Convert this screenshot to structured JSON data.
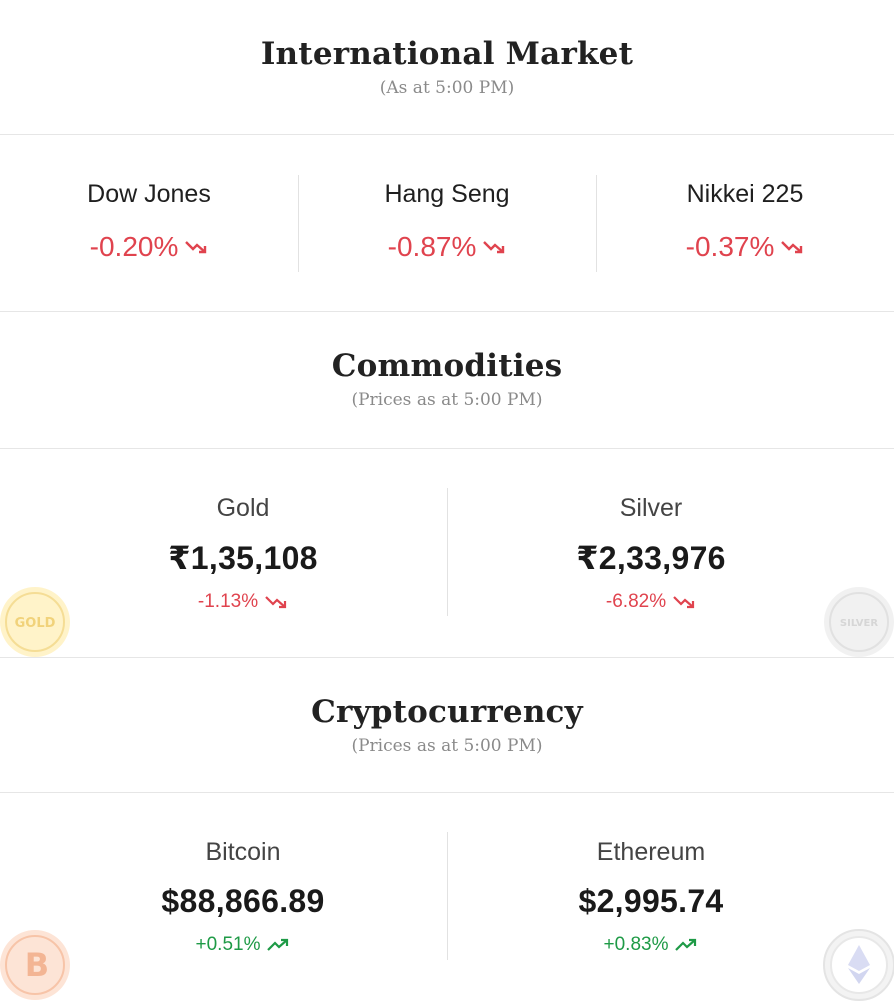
{
  "international": {
    "title": "International Market",
    "subtitle": "(As at 5:00 PM)",
    "indices": [
      {
        "name": "Dow Jones",
        "change": "-0.20%"
      },
      {
        "name": "Hang Seng",
        "change": "-0.87%"
      },
      {
        "name": "Nikkei 225",
        "change": "-0.37%"
      }
    ]
  },
  "commodities": {
    "title": "Commodities",
    "subtitle": "(Prices as at 5:00 PM)",
    "items": [
      {
        "name": "Gold",
        "price": "₹1,35,108",
        "change": "-1.13%",
        "coin_label": "GOLD"
      },
      {
        "name": "Silver",
        "price": "₹2,33,976",
        "change": "-6.82%",
        "coin_label": "SILVER"
      }
    ]
  },
  "crypto": {
    "title": "Cryptocurrency",
    "subtitle": "(Prices as at 5:00 PM)",
    "items": [
      {
        "name": "Bitcoin",
        "price": "$88,866.89",
        "change": "+0.51%"
      },
      {
        "name": "Ethereum",
        "price": "$2,995.74",
        "change": "+0.83%"
      }
    ]
  },
  "colors": {
    "down": "#e0434e",
    "up": "#1e9a46"
  },
  "icons": {
    "down": "trend-down-icon",
    "up": "trend-up-icon",
    "gold": "gold-coin-icon",
    "silver": "silver-coin-icon",
    "bitcoin": "bitcoin-coin-icon",
    "ethereum": "ethereum-coin-icon"
  }
}
